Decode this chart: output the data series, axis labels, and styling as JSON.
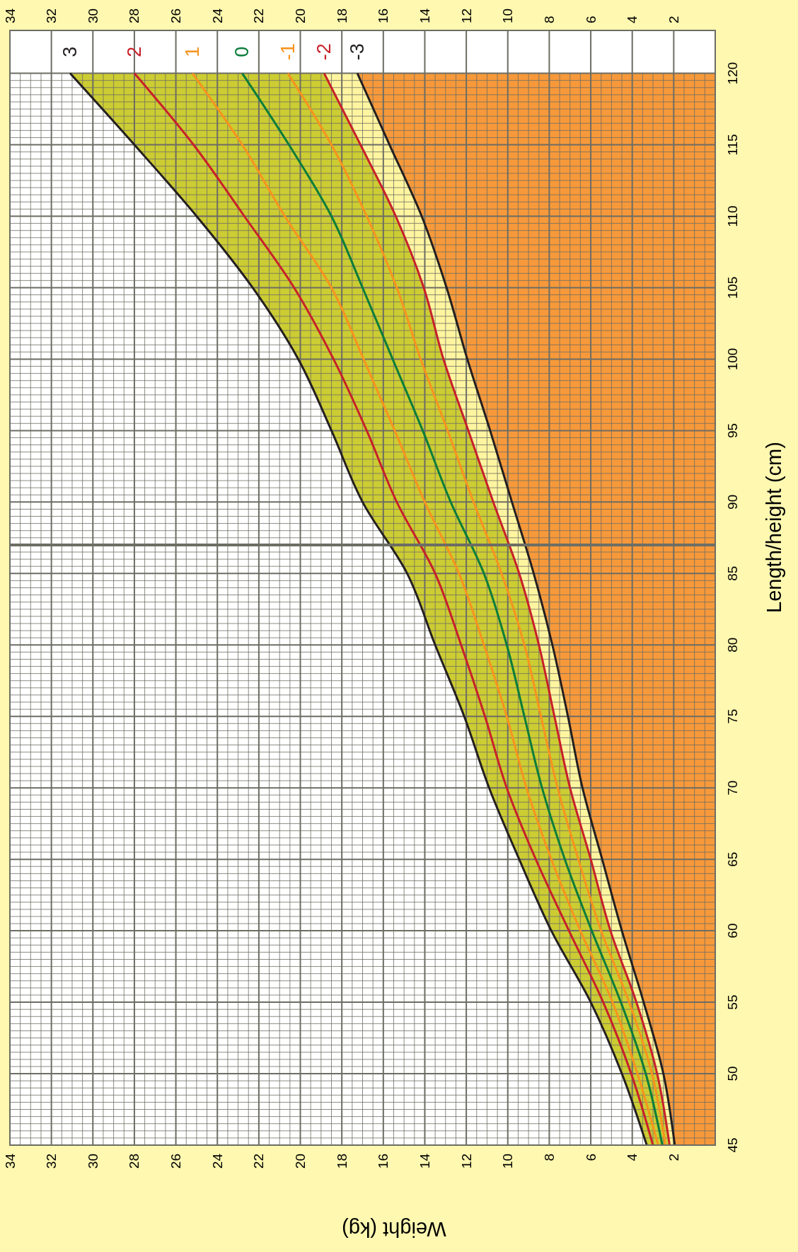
{
  "chart_data": {
    "type": "line",
    "orientation": "horizontal",
    "xlabel": "Weight (kg)",
    "ylabel": "Length/height (cm)",
    "x": [
      45,
      50,
      55,
      60,
      65,
      70,
      75,
      80,
      85,
      90,
      95,
      100,
      105,
      110,
      115,
      120
    ],
    "series": [
      {
        "type": "line",
        "name": "3",
        "color": "#231f20",
        "values": [
          3.3,
          4.5,
          6.0,
          7.9,
          9.45,
          10.9,
          12.1,
          13.5,
          14.85,
          17.0,
          18.5,
          20.1,
          22.3,
          25.0,
          28.0,
          31.1
        ]
      },
      {
        "type": "line",
        "name": "2",
        "color": "#c8202a",
        "values": [
          3.0,
          4.05,
          5.4,
          7.05,
          8.65,
          10.05,
          11.1,
          12.25,
          13.5,
          15.35,
          16.8,
          18.4,
          20.3,
          22.7,
          25.15,
          28.0
        ]
      },
      {
        "type": "line",
        "name": "1",
        "color": "#f7931e",
        "values": [
          2.75,
          3.75,
          4.95,
          6.5,
          7.9,
          9.1,
          10.05,
          11.15,
          12.35,
          14.0,
          15.45,
          16.95,
          18.5,
          20.75,
          22.8,
          25.2
        ]
      },
      {
        "type": "line",
        "name": "0",
        "color": "#0a7d3a",
        "values": [
          2.55,
          3.35,
          4.55,
          5.95,
          7.25,
          8.35,
          9.2,
          10.05,
          11.15,
          12.75,
          14.1,
          15.55,
          17.0,
          18.5,
          20.55,
          22.8
        ]
      },
      {
        "type": "line",
        "name": "-1",
        "color": "#f7931e",
        "values": [
          2.4,
          3.05,
          4.15,
          5.5,
          6.6,
          7.6,
          8.4,
          9.2,
          10.3,
          11.65,
          12.9,
          14.2,
          15.35,
          16.8,
          18.5,
          20.6
        ]
      },
      {
        "type": "line",
        "name": "-2",
        "color": "#c8202a",
        "values": [
          2.2,
          2.8,
          3.8,
          5.05,
          6.0,
          7.0,
          7.75,
          8.5,
          9.45,
          10.7,
          11.9,
          13.1,
          14.05,
          15.4,
          17.1,
          18.85
        ]
      },
      {
        "type": "line",
        "name": "-3",
        "color": "#231f20",
        "values": [
          1.95,
          2.5,
          3.45,
          4.5,
          5.45,
          6.4,
          7.1,
          7.85,
          8.75,
          9.8,
          10.85,
          11.95,
          12.95,
          14.15,
          15.7,
          17.25
        ]
      },
      {
        "type": "area",
        "color": "#cccc33",
        "values": [
          null,
          null,
          null,
          null,
          null,
          null,
          null,
          null,
          null,
          null,
          null,
          null,
          null,
          null,
          null,
          null
        ],
        "lower": [
          2.2,
          2.8,
          3.8,
          5.05,
          6.0,
          7.0,
          7.75,
          8.5,
          9.45,
          10.7,
          11.9,
          13.1,
          14.05,
          15.4,
          17.1,
          18.85
        ],
        "upper": [
          3.3,
          4.5,
          6.0,
          7.9,
          9.45,
          10.9,
          12.1,
          13.5,
          14.85,
          17.0,
          18.5,
          20.1,
          22.3,
          25.0,
          28.0,
          31.1
        ]
      },
      {
        "type": "area",
        "color": "#fff5a0",
        "values": [
          null,
          null,
          null,
          null,
          null,
          null,
          null,
          null,
          null,
          null,
          null,
          null,
          null,
          null,
          null,
          null
        ],
        "lower": [
          1.95,
          2.5,
          3.45,
          4.5,
          5.45,
          6.4,
          7.1,
          7.85,
          8.75,
          9.8,
          10.85,
          11.95,
          12.95,
          14.15,
          15.7,
          17.25
        ],
        "upper": [
          2.2,
          2.8,
          3.8,
          5.05,
          6.0,
          7.0,
          7.75,
          8.5,
          9.45,
          10.7,
          11.9,
          13.1,
          14.05,
          15.4,
          17.1,
          18.85
        ]
      },
      {
        "type": "area",
        "color": "#f7993a",
        "values": [
          null,
          null,
          null,
          null,
          null,
          null,
          null,
          null,
          null,
          null,
          null,
          null,
          null,
          null,
          null,
          null
        ],
        "lower": [
          0,
          0,
          0,
          0,
          0,
          0,
          0,
          0,
          0,
          0,
          0,
          0,
          0,
          0,
          0,
          0
        ],
        "upper": [
          1.95,
          2.5,
          3.45,
          4.5,
          5.45,
          6.4,
          7.1,
          7.85,
          8.75,
          9.8,
          10.85,
          11.95,
          12.95,
          14.15,
          15.7,
          17.25
        ]
      }
    ],
    "xlim": [
      34,
      0
    ],
    "xticks": [
      34,
      32,
      30,
      28,
      26,
      24,
      22,
      20,
      18,
      16,
      14,
      12,
      10,
      8,
      6,
      4,
      2
    ],
    "x2lim": [
      34,
      0
    ],
    "x2ticks": [
      34,
      32,
      30,
      28,
      26,
      24,
      22,
      20,
      18,
      16,
      14,
      12,
      10,
      8,
      6,
      4,
      2
    ],
    "ylim": [
      45,
      123
    ],
    "yticks": [
      45,
      50,
      55,
      60,
      65,
      70,
      75,
      80,
      85,
      90,
      95,
      100,
      105,
      110,
      115,
      120
    ],
    "ref_lines": [
      {
        "axis": "y",
        "value": 87,
        "color": "#6d6e64"
      }
    ],
    "grid": true,
    "legend": false
  }
}
